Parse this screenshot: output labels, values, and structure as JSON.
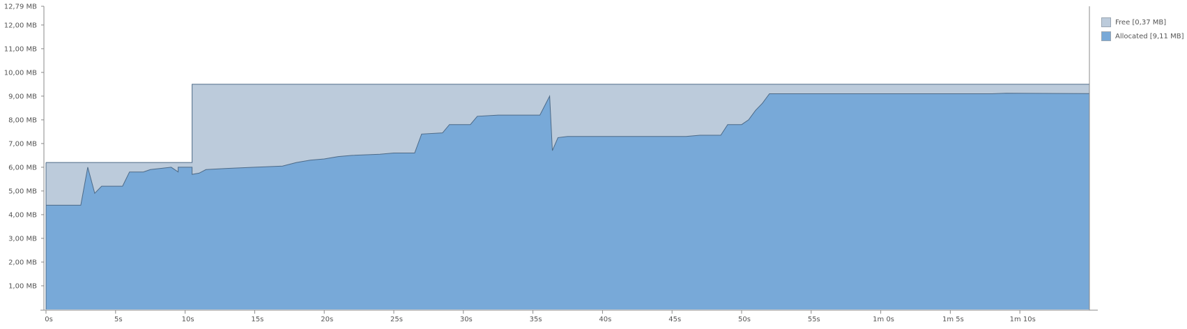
{
  "chart_data": {
    "type": "area",
    "title": "",
    "xlabel": "",
    "ylabel": "",
    "xlim": [
      0,
      75
    ],
    "ylim": [
      0,
      12.79
    ],
    "grid": false,
    "legend_position": "top-right",
    "x_ticks": [
      0,
      5,
      10,
      15,
      20,
      25,
      30,
      35,
      40,
      45,
      50,
      55,
      60,
      65,
      70
    ],
    "x_tick_labels": [
      "0s",
      "5s",
      "10s",
      "15s",
      "20s",
      "25s",
      "30s",
      "35s",
      "40s",
      "45s",
      "50s",
      "55s",
      "1m 0s",
      "1m 5s",
      "1m 10s"
    ],
    "y_ticks": [
      1,
      2,
      3,
      4,
      5,
      6,
      7,
      8,
      9,
      10,
      11,
      12,
      12.79
    ],
    "y_tick_labels": [
      "1,00 MB",
      "2,00 MB",
      "3,00 MB",
      "4,00 MB",
      "5,00 MB",
      "6,00 MB",
      "7,00 MB",
      "8,00 MB",
      "9,00 MB",
      "10,00 MB",
      "11,00 MB",
      "12,00 MB",
      "12,79 MB"
    ],
    "series": [
      {
        "name": "Free [0,37 MB]",
        "color": "#bccbdb",
        "role": "total",
        "points": [
          [
            0,
            6.2
          ],
          [
            10.5,
            6.2
          ],
          [
            10.5,
            9.5
          ],
          [
            75,
            9.5
          ]
        ]
      },
      {
        "name": "Allocated [9,11 MB]",
        "color": "#78a9d8",
        "role": "used",
        "points": [
          [
            0,
            4.4
          ],
          [
            2.5,
            4.4
          ],
          [
            3.0,
            6.0
          ],
          [
            3.5,
            4.9
          ],
          [
            4.0,
            5.2
          ],
          [
            5.5,
            5.2
          ],
          [
            6.0,
            5.8
          ],
          [
            7.0,
            5.8
          ],
          [
            7.5,
            5.9
          ],
          [
            9.0,
            6.0
          ],
          [
            9.5,
            5.8
          ],
          [
            9.5,
            6.0
          ],
          [
            10.5,
            6.0
          ],
          [
            10.5,
            5.7
          ],
          [
            11.0,
            5.75
          ],
          [
            11.5,
            5.9
          ],
          [
            13.0,
            5.95
          ],
          [
            15.0,
            6.0
          ],
          [
            17.0,
            6.05
          ],
          [
            18.0,
            6.2
          ],
          [
            19.0,
            6.3
          ],
          [
            20.0,
            6.35
          ],
          [
            21.0,
            6.45
          ],
          [
            22.0,
            6.5
          ],
          [
            24.0,
            6.55
          ],
          [
            25.0,
            6.6
          ],
          [
            26.5,
            6.6
          ],
          [
            27.0,
            7.4
          ],
          [
            28.5,
            7.45
          ],
          [
            29.0,
            7.8
          ],
          [
            30.5,
            7.8
          ],
          [
            31.0,
            8.15
          ],
          [
            32.5,
            8.2
          ],
          [
            33.0,
            8.2
          ],
          [
            35.5,
            8.2
          ],
          [
            36.2,
            9.0
          ],
          [
            36.4,
            6.7
          ],
          [
            36.8,
            7.25
          ],
          [
            37.5,
            7.3
          ],
          [
            43.0,
            7.3
          ],
          [
            46.0,
            7.3
          ],
          [
            47.0,
            7.35
          ],
          [
            48.5,
            7.35
          ],
          [
            49.0,
            7.8
          ],
          [
            50.0,
            7.8
          ],
          [
            50.5,
            8.0
          ],
          [
            51.0,
            8.4
          ],
          [
            51.5,
            8.7
          ],
          [
            52.0,
            9.1
          ],
          [
            68.0,
            9.1
          ],
          [
            69.0,
            9.12
          ],
          [
            75.0,
            9.11
          ]
        ]
      }
    ]
  }
}
